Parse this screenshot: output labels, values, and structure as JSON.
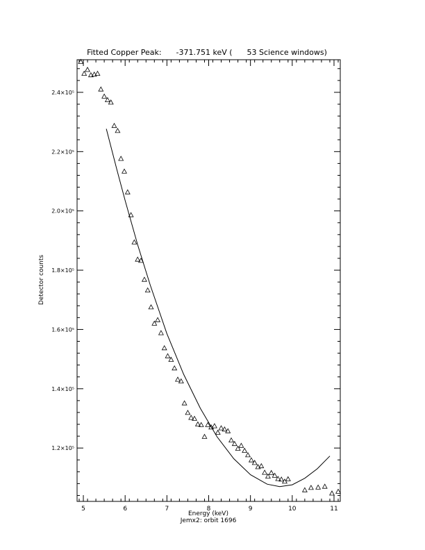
{
  "chart_data": {
    "type": "scatter",
    "title": "Fitted Copper Peak:      -371.751 keV (      53 Science windows)",
    "xlabel": "Energy (keV)",
    "subtitle": "Jemx2: orbit 1696",
    "ylabel": "Detector counts",
    "xlim": [
      4.85,
      11.15
    ],
    "ylim": [
      102000,
      251000
    ],
    "x_ticks": [
      5,
      6,
      7,
      8,
      9,
      10,
      11
    ],
    "x_tick_labels": [
      "5",
      "6",
      "7",
      "8",
      "9",
      "10",
      "11"
    ],
    "y_ticks": [
      120000,
      140000,
      160000,
      180000,
      200000,
      220000,
      240000
    ],
    "y_tick_labels": [
      "1.2×10⁵",
      "1.4×10⁵",
      "1.6×10⁵",
      "1.8×10⁵",
      "2.0×10⁵",
      "2.2×10⁵",
      "2.4×10⁵"
    ],
    "grid": false,
    "series": [
      {
        "marker": "triangle",
        "points": [
          [
            4.94,
            250300
          ],
          [
            5.02,
            246300
          ],
          [
            5.1,
            247600
          ],
          [
            5.18,
            245800
          ],
          [
            5.26,
            246000
          ],
          [
            5.34,
            246300
          ],
          [
            5.42,
            241000
          ],
          [
            5.5,
            238600
          ],
          [
            5.58,
            237400
          ],
          [
            5.66,
            236600
          ],
          [
            5.74,
            228700
          ],
          [
            5.82,
            227000
          ],
          [
            5.9,
            217600
          ],
          [
            5.98,
            213300
          ],
          [
            6.06,
            206300
          ],
          [
            6.14,
            198600
          ],
          [
            6.22,
            189400
          ],
          [
            6.3,
            183600
          ],
          [
            6.38,
            183200
          ],
          [
            6.46,
            176800
          ],
          [
            6.54,
            173200
          ],
          [
            6.62,
            167500
          ],
          [
            6.7,
            162000
          ],
          [
            6.78,
            163200
          ],
          [
            6.86,
            158800
          ],
          [
            6.94,
            153700
          ],
          [
            7.02,
            151000
          ],
          [
            7.1,
            149800
          ],
          [
            7.18,
            146900
          ],
          [
            7.26,
            143100
          ],
          [
            7.34,
            142500
          ],
          [
            7.42,
            135100
          ],
          [
            7.5,
            131900
          ],
          [
            7.58,
            130200
          ],
          [
            7.66,
            129900
          ],
          [
            7.74,
            128000
          ],
          [
            7.82,
            127800
          ],
          [
            7.9,
            123800
          ],
          [
            7.98,
            127800
          ],
          [
            8.06,
            127000
          ],
          [
            8.14,
            127400
          ],
          [
            8.22,
            125200
          ],
          [
            8.3,
            126700
          ],
          [
            8.38,
            126300
          ],
          [
            8.46,
            125700
          ],
          [
            8.54,
            122600
          ],
          [
            8.62,
            121400
          ],
          [
            8.7,
            119800
          ],
          [
            8.78,
            120800
          ],
          [
            8.86,
            119100
          ],
          [
            8.94,
            117600
          ],
          [
            9.02,
            115900
          ],
          [
            9.1,
            115000
          ],
          [
            9.18,
            113600
          ],
          [
            9.26,
            113900
          ],
          [
            9.34,
            111700
          ],
          [
            9.42,
            110400
          ],
          [
            9.5,
            111600
          ],
          [
            9.58,
            110700
          ],
          [
            9.66,
            109600
          ],
          [
            9.74,
            109400
          ],
          [
            9.82,
            108700
          ],
          [
            9.9,
            109500
          ],
          [
            10.3,
            105800
          ],
          [
            10.45,
            106600
          ],
          [
            10.62,
            106700
          ],
          [
            10.78,
            107000
          ],
          [
            10.95,
            104700
          ],
          [
            11.1,
            105300
          ]
        ]
      },
      {
        "marker": "line",
        "x": [
          5.55,
          5.8,
          6.0,
          6.3,
          6.6,
          7.0,
          7.4,
          7.8,
          8.2,
          8.6,
          9.0,
          9.4,
          9.7,
          10.0,
          10.3,
          10.6,
          10.9
        ],
        "y": [
          227700,
          214000,
          203500,
          188600,
          175000,
          158600,
          144900,
          133400,
          123800,
          116400,
          111000,
          107800,
          107000,
          107600,
          109800,
          113000,
          117300
        ]
      }
    ]
  }
}
